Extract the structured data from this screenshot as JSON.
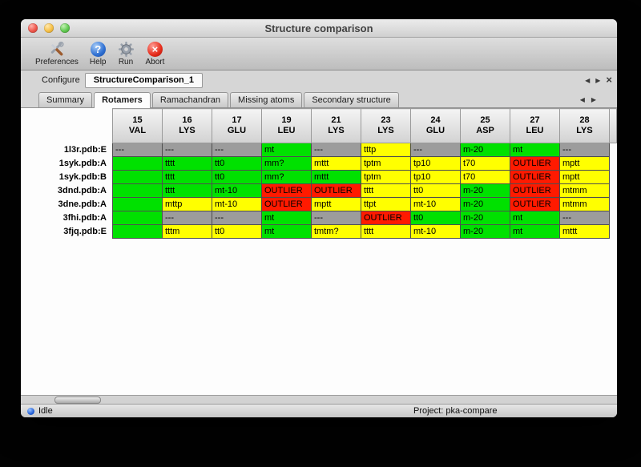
{
  "window": {
    "title": "Structure comparison"
  },
  "toolbar": {
    "items": [
      {
        "label": "Preferences",
        "icon": "crossed-tools-icon"
      },
      {
        "label": "Help",
        "icon": "question-badge-icon"
      },
      {
        "label": "Run",
        "icon": "gear-icon"
      },
      {
        "label": "Abort",
        "icon": "red-x-icon"
      }
    ]
  },
  "configure": {
    "label": "Configure",
    "tab": "StructureComparison_1"
  },
  "tabs": {
    "items": [
      {
        "label": "Summary",
        "active": false
      },
      {
        "label": "Rotamers",
        "active": true
      },
      {
        "label": "Ramachandran",
        "active": false
      },
      {
        "label": "Missing atoms",
        "active": false
      },
      {
        "label": "Secondary structure",
        "active": false
      }
    ]
  },
  "icons": {
    "help_glyph": "?",
    "abort_glyph": "×",
    "prev_glyph": "◀",
    "next_glyph": "▶",
    "close_glyph": "×"
  },
  "colors": {
    "green": "#00e100",
    "yellow": "#ffff00",
    "red": "#ff1a00",
    "gray": "#9c9c9c",
    "status_led": "#2360d8"
  },
  "table": {
    "columns": [
      {
        "num": "15",
        "res": "VAL"
      },
      {
        "num": "16",
        "res": "LYS"
      },
      {
        "num": "17",
        "res": "GLU"
      },
      {
        "num": "19",
        "res": "LEU"
      },
      {
        "num": "21",
        "res": "LYS"
      },
      {
        "num": "23",
        "res": "LYS"
      },
      {
        "num": "24",
        "res": "GLU"
      },
      {
        "num": "25",
        "res": "ASP"
      },
      {
        "num": "27",
        "res": "LEU"
      },
      {
        "num": "28",
        "res": "LYS"
      }
    ],
    "rows": [
      {
        "label": "1l3r.pdb:E",
        "cells": [
          {
            "text": "---",
            "status": "gray"
          },
          {
            "text": "---",
            "status": "gray"
          },
          {
            "text": "---",
            "status": "gray"
          },
          {
            "text": "mt",
            "status": "green"
          },
          {
            "text": "---",
            "status": "gray"
          },
          {
            "text": "tttp",
            "status": "yellow"
          },
          {
            "text": "---",
            "status": "gray"
          },
          {
            "text": "m-20",
            "status": "green"
          },
          {
            "text": "mt",
            "status": "green"
          },
          {
            "text": "---",
            "status": "gray"
          }
        ]
      },
      {
        "label": "1syk.pdb:A",
        "cells": [
          {
            "text": "",
            "status": "green"
          },
          {
            "text": "tttt",
            "status": "green"
          },
          {
            "text": "tt0",
            "status": "green"
          },
          {
            "text": "mm?",
            "status": "green"
          },
          {
            "text": "mttt",
            "status": "yellow"
          },
          {
            "text": "tptm",
            "status": "yellow"
          },
          {
            "text": "tp10",
            "status": "yellow"
          },
          {
            "text": "t70",
            "status": "yellow"
          },
          {
            "text": "OUTLIER",
            "status": "red"
          },
          {
            "text": "mptt",
            "status": "yellow"
          }
        ]
      },
      {
        "label": "1syk.pdb:B",
        "cells": [
          {
            "text": "",
            "status": "green"
          },
          {
            "text": "tttt",
            "status": "green"
          },
          {
            "text": "tt0",
            "status": "green"
          },
          {
            "text": "mm?",
            "status": "green"
          },
          {
            "text": "mttt",
            "status": "green"
          },
          {
            "text": "tptm",
            "status": "yellow"
          },
          {
            "text": "tp10",
            "status": "yellow"
          },
          {
            "text": "t70",
            "status": "yellow"
          },
          {
            "text": "OUTLIER",
            "status": "red"
          },
          {
            "text": "mptt",
            "status": "yellow"
          }
        ]
      },
      {
        "label": "3dnd.pdb:A",
        "cells": [
          {
            "text": "",
            "status": "green"
          },
          {
            "text": "tttt",
            "status": "green"
          },
          {
            "text": "mt-10",
            "status": "green"
          },
          {
            "text": "OUTLIER",
            "status": "red"
          },
          {
            "text": "OUTLIER",
            "status": "red"
          },
          {
            "text": "tttt",
            "status": "yellow"
          },
          {
            "text": "tt0",
            "status": "yellow"
          },
          {
            "text": "m-20",
            "status": "green"
          },
          {
            "text": "OUTLIER",
            "status": "red"
          },
          {
            "text": "mtmm",
            "status": "yellow"
          }
        ]
      },
      {
        "label": "3dne.pdb:A",
        "cells": [
          {
            "text": "",
            "status": "green"
          },
          {
            "text": "mttp",
            "status": "yellow"
          },
          {
            "text": "mt-10",
            "status": "yellow"
          },
          {
            "text": "OUTLIER",
            "status": "red"
          },
          {
            "text": "mptt",
            "status": "yellow"
          },
          {
            "text": "ttpt",
            "status": "yellow"
          },
          {
            "text": "mt-10",
            "status": "yellow"
          },
          {
            "text": "m-20",
            "status": "green"
          },
          {
            "text": "OUTLIER",
            "status": "red"
          },
          {
            "text": "mtmm",
            "status": "yellow"
          }
        ]
      },
      {
        "label": "3fhi.pdb:A",
        "cells": [
          {
            "text": "",
            "status": "green"
          },
          {
            "text": "---",
            "status": "gray"
          },
          {
            "text": "---",
            "status": "gray"
          },
          {
            "text": "mt",
            "status": "green"
          },
          {
            "text": "---",
            "status": "gray"
          },
          {
            "text": "OUTLIER",
            "status": "red"
          },
          {
            "text": "tt0",
            "status": "green"
          },
          {
            "text": "m-20",
            "status": "green"
          },
          {
            "text": "mt",
            "status": "green"
          },
          {
            "text": "---",
            "status": "gray"
          }
        ]
      },
      {
        "label": "3fjq.pdb:E",
        "cells": [
          {
            "text": "",
            "status": "green"
          },
          {
            "text": "tttm",
            "status": "yellow"
          },
          {
            "text": "tt0",
            "status": "yellow"
          },
          {
            "text": "mt",
            "status": "green"
          },
          {
            "text": "tmtm?",
            "status": "yellow"
          },
          {
            "text": "tttt",
            "status": "yellow"
          },
          {
            "text": "mt-10",
            "status": "yellow"
          },
          {
            "text": "m-20",
            "status": "green"
          },
          {
            "text": "mt",
            "status": "green"
          },
          {
            "text": "mttt",
            "status": "yellow"
          }
        ]
      }
    ]
  },
  "status": {
    "state": "Idle",
    "project": "Project: pka-compare"
  }
}
